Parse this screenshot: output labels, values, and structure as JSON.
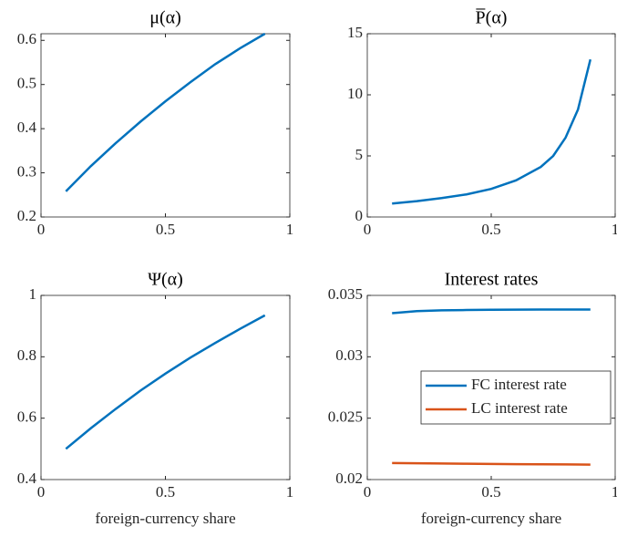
{
  "chart_data": [
    {
      "type": "line",
      "title": "μ(α)",
      "x": [
        0.1,
        0.2,
        0.3,
        0.4,
        0.5,
        0.6,
        0.7,
        0.8,
        0.9
      ],
      "series": [
        {
          "color": "#0072bd",
          "values": [
            0.258,
            0.315,
            0.367,
            0.416,
            0.462,
            0.505,
            0.546,
            0.582,
            0.615
          ]
        }
      ],
      "xlim": [
        0,
        1
      ],
      "ylim": [
        0.2,
        0.615
      ],
      "xticks": [
        0,
        0.5,
        1
      ],
      "yticks": [
        0.2,
        0.3,
        0.4,
        0.5,
        0.6
      ]
    },
    {
      "type": "line",
      "title": "P̅(α)",
      "x": [
        0.1,
        0.2,
        0.3,
        0.4,
        0.5,
        0.6,
        0.7,
        0.75,
        0.8,
        0.85,
        0.9
      ],
      "series": [
        {
          "color": "#0072bd",
          "values": [
            1.1,
            1.3,
            1.55,
            1.85,
            2.3,
            3.0,
            4.1,
            5.0,
            6.5,
            8.8,
            12.9
          ]
        }
      ],
      "xlim": [
        0,
        1
      ],
      "ylim": [
        0,
        15
      ],
      "xticks": [
        0,
        0.5,
        1
      ],
      "yticks": [
        0,
        5,
        10,
        15
      ]
    },
    {
      "type": "line",
      "title": "Ψ(α)",
      "xlabel": "foreign-currency share",
      "x": [
        0.1,
        0.2,
        0.3,
        0.4,
        0.5,
        0.6,
        0.7,
        0.8,
        0.9
      ],
      "series": [
        {
          "color": "#0072bd",
          "values": [
            0.5,
            0.567,
            0.63,
            0.69,
            0.745,
            0.797,
            0.845,
            0.891,
            0.935
          ]
        }
      ],
      "xlim": [
        0,
        1
      ],
      "ylim": [
        0.4,
        1
      ],
      "xticks": [
        0,
        0.5,
        1
      ],
      "yticks": [
        0.4,
        0.6,
        0.8,
        1
      ]
    },
    {
      "type": "line",
      "title": "Interest rates",
      "xlabel": "foreign-currency share",
      "legend": "right",
      "x": [
        0.1,
        0.2,
        0.3,
        0.4,
        0.5,
        0.6,
        0.7,
        0.8,
        0.9
      ],
      "series": [
        {
          "name": "FC interest rate",
          "color": "#0072bd",
          "values": [
            0.03355,
            0.03372,
            0.03378,
            0.03381,
            0.03383,
            0.03384,
            0.03385,
            0.03385,
            0.03385
          ]
        },
        {
          "name": "LC interest rate",
          "color": "#d95319",
          "values": [
            0.02135,
            0.02133,
            0.02131,
            0.02129,
            0.02127,
            0.02125,
            0.02124,
            0.02123,
            0.02122
          ]
        }
      ],
      "xlim": [
        0,
        1
      ],
      "ylim": [
        0.02,
        0.035
      ],
      "xticks": [
        0,
        0.5,
        1
      ],
      "yticks": [
        0.02,
        0.025,
        0.03,
        0.035
      ]
    }
  ]
}
